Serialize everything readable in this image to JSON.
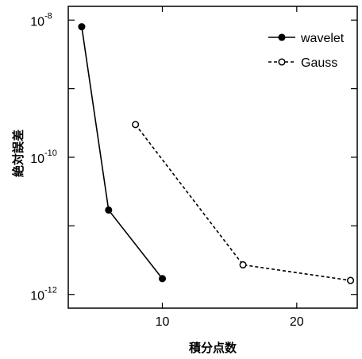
{
  "chart_data": {
    "type": "line",
    "xlabel": "積分点数",
    "ylabel": "絶対誤差",
    "xlim": [
      3,
      24.5
    ],
    "ylim_log10": [
      -12.2,
      -7.8
    ],
    "y_scale": "log",
    "x_ticks": [
      10,
      20
    ],
    "y_ticks": [
      {
        "value": -8,
        "base": "10",
        "exp": "-8"
      },
      {
        "value": -10,
        "base": "10",
        "exp": "-10"
      },
      {
        "value": -12,
        "base": "10",
        "exp": "-12"
      }
    ],
    "legend_position": "top-right",
    "series": [
      {
        "name": "wavelet",
        "line_style": "solid",
        "marker": "filled-circle",
        "x": [
          4,
          6,
          10
        ],
        "y": [
          8e-09,
          1.7e-11,
          1.7e-12
        ]
      },
      {
        "name": "Gauss",
        "line_style": "dashed",
        "marker": "open-circle",
        "x": [
          8,
          16,
          24
        ],
        "y": [
          3e-10,
          2.7e-12,
          1.6e-12
        ]
      }
    ]
  }
}
